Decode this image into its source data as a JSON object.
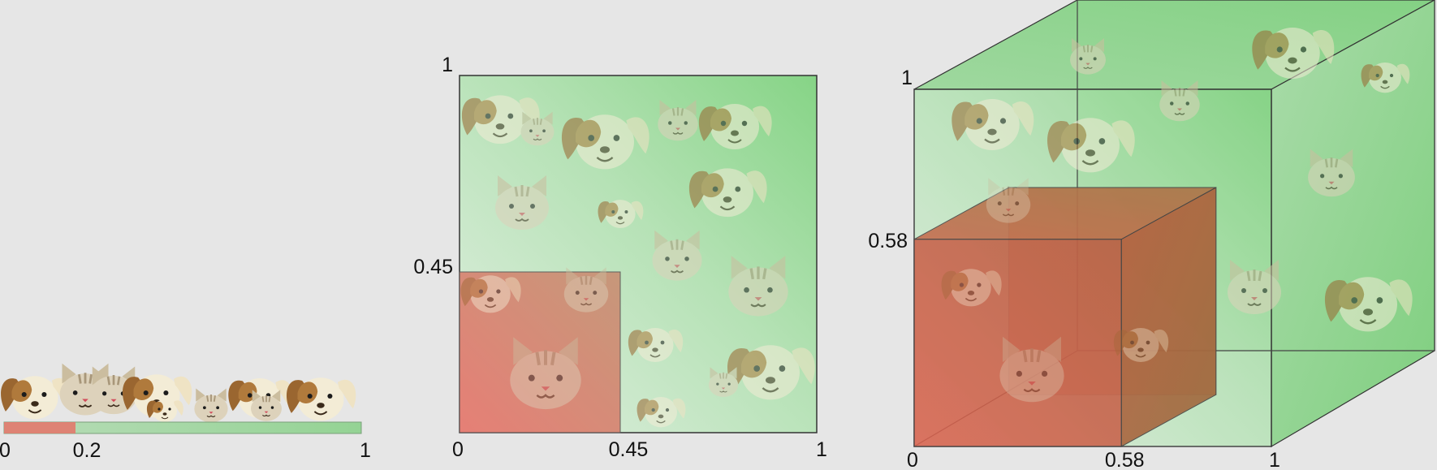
{
  "colors": {
    "background": "#e6e6e6",
    "green": "#8fd68f",
    "green_light": "#cfe8cf",
    "red": "#e07a6f",
    "red_dark": "#b0583f",
    "dog_brown": "#a26a3a",
    "cat_beige": "#d8cdb8"
  },
  "panels": [
    {
      "id": "1d",
      "fraction": 0.2,
      "labels": {
        "zero": "0",
        "value": "0.2",
        "one": "1"
      },
      "icons": [
        "dog-face-icon",
        "cat-face-icon"
      ]
    },
    {
      "id": "2d",
      "fraction": 0.45,
      "labels": {
        "x_zero": "0",
        "x_value": "0.45",
        "x_one": "1",
        "y_value": "0.45",
        "y_one": "1"
      },
      "icons": [
        "dog-face-icon",
        "cat-face-icon"
      ]
    },
    {
      "id": "3d",
      "fraction": 0.58,
      "labels": {
        "x_zero": "0",
        "x_value": "0.58",
        "x_one": "1",
        "y_value": "0.58",
        "y_one": "1"
      },
      "icons": [
        "dog-face-icon",
        "cat-face-icon"
      ]
    }
  ]
}
